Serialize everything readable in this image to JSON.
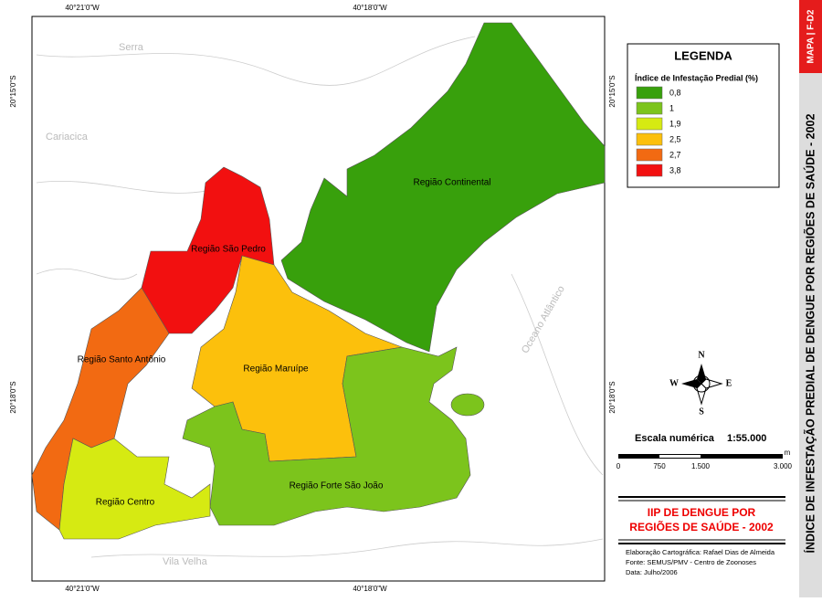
{
  "coordinates": {
    "top": [
      "40°21'0\"W",
      "40°18'0\"W"
    ],
    "bottom": [
      "40°21'0\"W",
      "40°18'0\"W"
    ],
    "left": [
      "20°15'0\"S",
      "20°18'0\"S"
    ],
    "right": [
      "20°15'0\"S",
      "20°18'0\"S"
    ]
  },
  "places": [
    "Serra",
    "Cariacica",
    "Vila Velha",
    "Oceano Atlântico"
  ],
  "regions": [
    {
      "name": "Região Continental",
      "color": "#38a00c"
    },
    {
      "name": "Região São Pedro",
      "color": "#f21010"
    },
    {
      "name": "Região Santo Antônio",
      "color": "#f26a12"
    },
    {
      "name": "Região Maruípe",
      "color": "#fcc00c"
    },
    {
      "name": "Região Forte São João",
      "color": "#7cc41c"
    },
    {
      "name": "Região Centro",
      "color": "#d6ea12"
    }
  ],
  "legend": {
    "title": "LEGENDA",
    "subtitle": "Índice de Infestação Predial (%)",
    "items": [
      {
        "label": "0,8",
        "color": "#38a00c"
      },
      {
        "label": "1",
        "color": "#7cc41c"
      },
      {
        "label": "1,9",
        "color": "#d6ea12"
      },
      {
        "label": "2,5",
        "color": "#fcc00c"
      },
      {
        "label": "2,7",
        "color": "#f26a12"
      },
      {
        "label": "3,8",
        "color": "#f21010"
      }
    ]
  },
  "compass": [
    "N",
    "S",
    "E",
    "W"
  ],
  "scale": {
    "title": "Escala numérica",
    "ratio": "1:55.000",
    "labels": [
      "0",
      "750",
      "1.500",
      "3.000"
    ],
    "unit": "m"
  },
  "map_title": [
    "IIP DE DENGUE POR",
    "REGIÕES DE SAÚDE - 2002"
  ],
  "credits": [
    "Elaboração Cartográfica: Rafael Dias de Almeida",
    "Fonte: SEMUS/PMV - Centro de Zoonoses",
    "Data: Julho/2006"
  ],
  "sidebar": {
    "code": "MAPA | F-D2",
    "title": "ÍNDICE DE INFESTAÇÃO PREDIAL DE DENGUE POR REGIÕES DE SAÚDE - 2002"
  }
}
